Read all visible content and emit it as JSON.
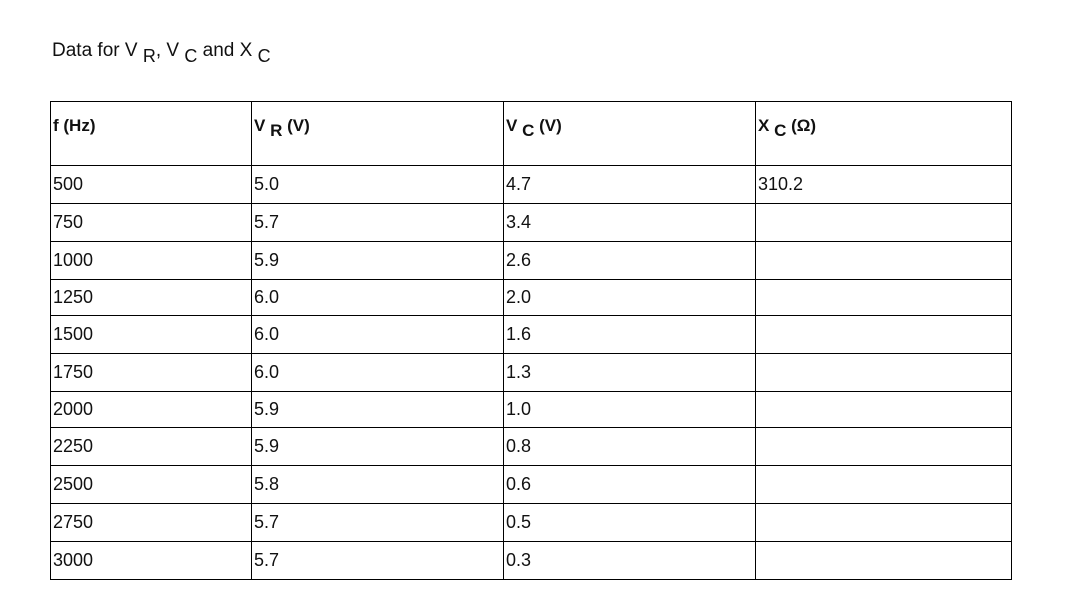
{
  "title": {
    "prefix": "Data for V ",
    "sub1": "R",
    "mid1": ", V ",
    "sub2": "C",
    "mid2": " and X ",
    "sub3": "C"
  },
  "table": {
    "headers": [
      {
        "main": "f (Hz)",
        "sub": "",
        "unit": ""
      },
      {
        "main": "V ",
        "sub": "R",
        "unit": " (V)"
      },
      {
        "main": "V ",
        "sub": "C",
        "unit": " (V)"
      },
      {
        "main": "X ",
        "sub": "C",
        "unit": " (Ω)"
      }
    ],
    "rows": [
      [
        "500",
        "5.0",
        "4.7",
        "310.2"
      ],
      [
        "750",
        "5.7",
        "3.4",
        ""
      ],
      [
        "1000",
        "5.9",
        "2.6",
        ""
      ],
      [
        "1250",
        "6.0",
        "2.0",
        ""
      ],
      [
        "1500",
        "6.0",
        "1.6",
        ""
      ],
      [
        "1750",
        "6.0",
        "1.3",
        ""
      ],
      [
        "2000",
        "5.9",
        "1.0",
        ""
      ],
      [
        "2250",
        "5.9",
        "0.8",
        ""
      ],
      [
        "2500",
        "5.8",
        "0.6",
        ""
      ],
      [
        "2750",
        "5.7",
        "0.5",
        ""
      ],
      [
        "3000",
        "5.7",
        "0.3",
        ""
      ]
    ]
  }
}
